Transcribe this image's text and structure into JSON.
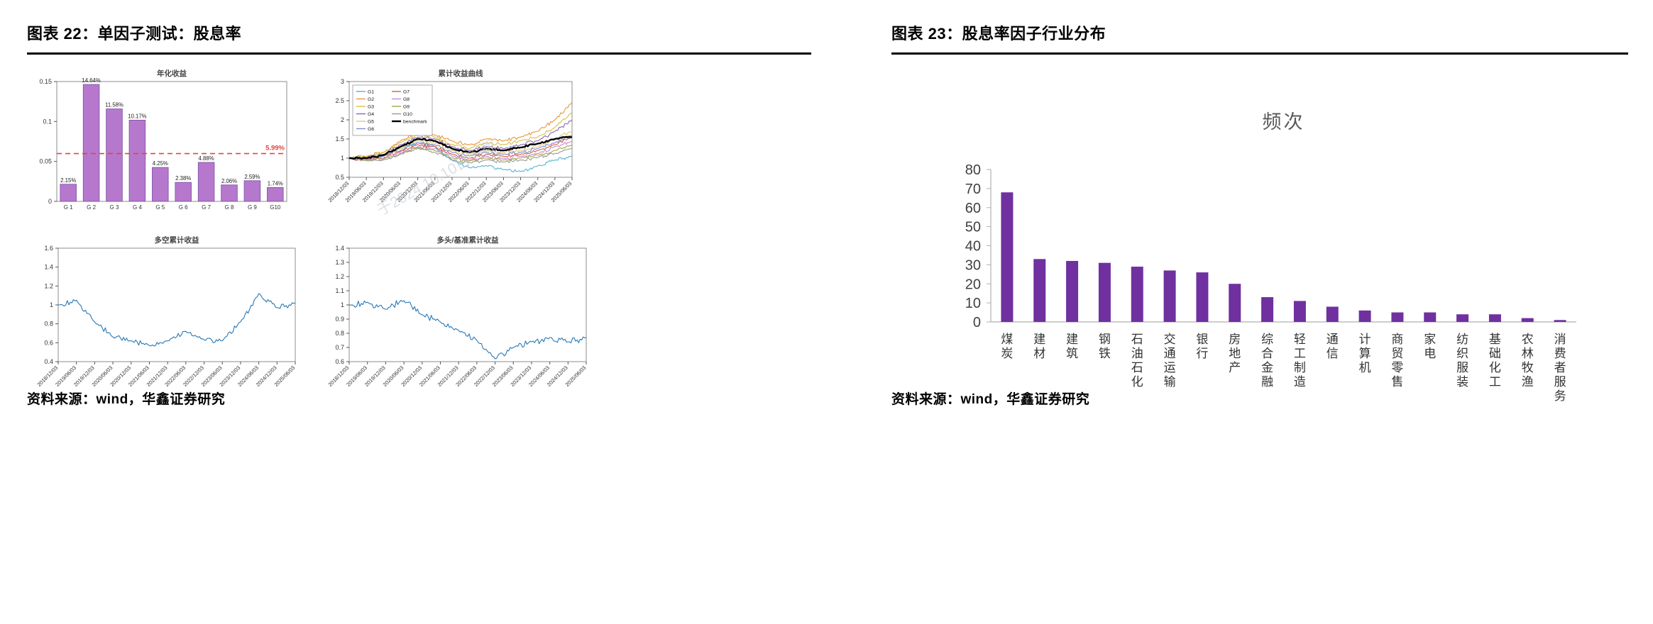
{
  "watermark": {
    "text": "于2024.10.10日下载"
  },
  "figure22": {
    "title": "图表 22：单因子测试：股息率",
    "source": "资料来源：wind，华鑫证券研究"
  },
  "figure23": {
    "title": "图表 23：股息率因子行业分布",
    "source": "资料来源：wind，华鑫证券研究"
  },
  "chart_data": [
    {
      "id": "annualized-returns",
      "type": "bar",
      "title": "年化收益",
      "categories": [
        "G 1",
        "G 2",
        "G 3",
        "G 4",
        "G 5",
        "G 6",
        "G 7",
        "G 8",
        "G 9",
        "G10"
      ],
      "values_pct": [
        2.15,
        14.64,
        11.58,
        10.17,
        4.25,
        2.38,
        4.88,
        2.06,
        2.59,
        1.74
      ],
      "bar_labels": [
        "2.15%",
        "14.64%",
        "11.58%",
        "10.17%",
        "4.25%",
        "2.38%",
        "4.88%",
        "2.06%",
        "2.59%",
        "1.74%"
      ],
      "ylim": [
        0,
        0.15
      ],
      "yticks": [
        0,
        0.05,
        0.1,
        0.15
      ],
      "bar_color": "#b678cc",
      "bar_edge": "#7a4fa3",
      "refline": {
        "value_pct": 5.99,
        "label": "5.99%",
        "color": "#e8413c",
        "style": "dashed"
      }
    },
    {
      "id": "cumulative-returns",
      "type": "line",
      "title": "累计收益曲线",
      "x_labels": [
        "2018/12/03",
        "2019/06/03",
        "2019/12/03",
        "2020/06/03",
        "2020/12/03",
        "2021/06/03",
        "2021/12/03",
        "2022/06/03",
        "2022/12/03",
        "2023/06/03",
        "2023/12/03",
        "2024/06/03",
        "2024/12/03",
        "2025/06/03"
      ],
      "ylim": [
        0.5,
        3
      ],
      "yticks": [
        0.5,
        1,
        1.5,
        2,
        2.5,
        3
      ],
      "legend_position": "top-left",
      "series": [
        {
          "name": "G1",
          "color": "#56b4d3",
          "values": [
            1.0,
            1.05,
            1.1,
            1.25,
            1.4,
            1.3,
            0.95,
            0.75,
            0.8,
            0.7,
            0.65,
            0.8,
            0.95,
            1.05
          ]
        },
        {
          "name": "G2",
          "color": "#e8973a",
          "values": [
            1.0,
            1.05,
            1.15,
            1.45,
            1.7,
            1.6,
            1.45,
            1.35,
            1.5,
            1.45,
            1.55,
            1.7,
            2.0,
            2.45
          ]
        },
        {
          "name": "G3",
          "color": "#d9c13f",
          "values": [
            1.0,
            1.05,
            1.15,
            1.4,
            1.6,
            1.55,
            1.35,
            1.25,
            1.4,
            1.35,
            1.45,
            1.55,
            1.8,
            2.2
          ]
        },
        {
          "name": "G4",
          "color": "#8f66b8",
          "values": [
            1.0,
            1.0,
            1.1,
            1.35,
            1.55,
            1.5,
            1.3,
            1.2,
            1.3,
            1.25,
            1.35,
            1.45,
            1.7,
            2.0
          ]
        },
        {
          "name": "G5",
          "color": "#e3c87a",
          "values": [
            1.0,
            1.0,
            1.05,
            1.25,
            1.45,
            1.4,
            1.2,
            1.1,
            1.2,
            1.15,
            1.2,
            1.3,
            1.5,
            1.7
          ]
        },
        {
          "name": "G6",
          "color": "#7a8fd0",
          "values": [
            1.0,
            0.98,
            1.05,
            1.2,
            1.4,
            1.35,
            1.15,
            1.05,
            1.15,
            1.1,
            1.15,
            1.25,
            1.4,
            1.6
          ]
        },
        {
          "name": "G7",
          "color": "#d95f4a",
          "values": [
            1.0,
            0.97,
            1.0,
            1.18,
            1.35,
            1.3,
            1.1,
            1.0,
            1.1,
            1.05,
            1.1,
            1.2,
            1.35,
            1.55
          ]
        },
        {
          "name": "G8",
          "color": "#c98ac9",
          "values": [
            1.0,
            0.96,
            1.0,
            1.15,
            1.3,
            1.25,
            1.05,
            0.95,
            1.05,
            1.0,
            1.05,
            1.12,
            1.3,
            1.45
          ]
        },
        {
          "name": "G9",
          "color": "#a8a84e",
          "values": [
            1.0,
            0.95,
            0.98,
            1.12,
            1.28,
            1.2,
            1.0,
            0.92,
            1.0,
            0.95,
            1.0,
            1.08,
            1.2,
            1.35
          ]
        },
        {
          "name": "G10",
          "color": "#9a9a9a",
          "values": [
            1.0,
            0.93,
            0.95,
            1.1,
            1.25,
            1.15,
            0.95,
            0.88,
            0.95,
            0.9,
            0.95,
            1.02,
            1.12,
            1.25
          ]
        },
        {
          "name": "benchmark",
          "color": "#000000",
          "width": 2.4,
          "values": [
            1.0,
            1.0,
            1.08,
            1.3,
            1.5,
            1.45,
            1.25,
            1.15,
            1.25,
            1.2,
            1.28,
            1.38,
            1.5,
            1.55
          ]
        }
      ]
    },
    {
      "id": "long-short",
      "type": "line",
      "title": "多空累计收益",
      "x_labels": [
        "2018/12/03",
        "2019/06/03",
        "2019/12/03",
        "2020/06/03",
        "2020/12/03",
        "2021/06/03",
        "2021/12/03",
        "2022/06/03",
        "2022/12/03",
        "2023/06/03",
        "2023/12/03",
        "2024/06/03",
        "2024/12/03",
        "2025/06/03"
      ],
      "ylim": [
        0.4,
        1.6
      ],
      "yticks": [
        0.4,
        0.6,
        0.8,
        1,
        1.2,
        1.4,
        1.6
      ],
      "series": [
        {
          "name": "多空累计收益",
          "color": "#2878b5",
          "values": [
            1.0,
            1.05,
            0.82,
            0.66,
            0.62,
            0.57,
            0.62,
            0.72,
            0.63,
            0.62,
            0.82,
            1.12,
            0.97,
            1.02
          ]
        }
      ]
    },
    {
      "id": "long-vs-benchmark",
      "type": "line",
      "title": "多头/基准累计收益",
      "x_labels": [
        "2018/12/03",
        "2019/06/03",
        "2019/12/03",
        "2020/06/03",
        "2020/12/03",
        "2021/06/03",
        "2021/12/03",
        "2022/06/03",
        "2022/12/03",
        "2023/06/03",
        "2023/12/03",
        "2024/06/03",
        "2024/12/03",
        "2025/06/03"
      ],
      "ylim": [
        0.6,
        1.4
      ],
      "yticks": [
        0.6,
        0.7,
        0.8,
        0.9,
        1,
        1.1,
        1.2,
        1.3,
        1.4
      ],
      "series": [
        {
          "name": "多头/基准累计收益",
          "color": "#2878b5",
          "values": [
            1.0,
            1.02,
            0.97,
            1.03,
            0.93,
            0.88,
            0.82,
            0.75,
            0.62,
            0.7,
            0.74,
            0.77,
            0.74,
            0.77
          ]
        }
      ]
    },
    {
      "id": "industry-frequency",
      "type": "bar",
      "title": "频次",
      "categories": [
        "煤炭",
        "建材",
        "建筑",
        "钢铁",
        "石油石化",
        "交通运输",
        "银行",
        "房地产",
        "综合金融",
        "轻工制造",
        "通信",
        "计算机",
        "商贸零售",
        "家电",
        "纺织服装",
        "基础化工",
        "农林牧渔",
        "消费者服务"
      ],
      "values": [
        68,
        33,
        32,
        31,
        29,
        27,
        26,
        20,
        13,
        11,
        8,
        6,
        5,
        5,
        4,
        4,
        2,
        1
      ],
      "ylim": [
        0,
        80
      ],
      "yticks": [
        0,
        10,
        20,
        30,
        40,
        50,
        60,
        70,
        80
      ],
      "bar_color": "#7030a0"
    }
  ]
}
